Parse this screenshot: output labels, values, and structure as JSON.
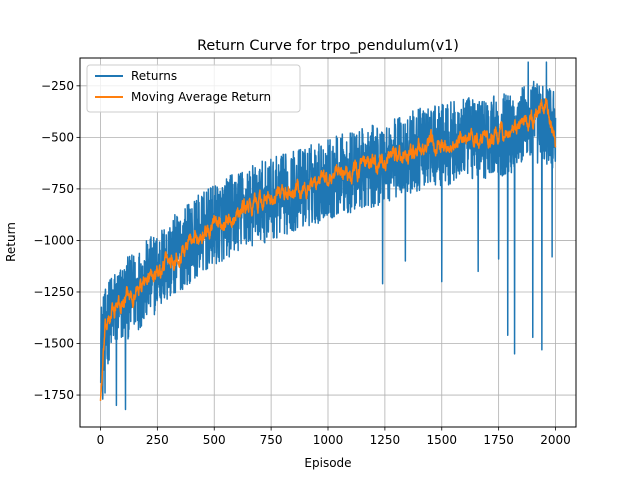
{
  "chart_data": {
    "type": "line",
    "title": "Return Curve for trpo_pendulum(v1)",
    "xlabel": "Episode",
    "ylabel": "Return",
    "xlim": [
      -90,
      2090
    ],
    "ylim": [
      -1905,
      -115
    ],
    "xticks": [
      0,
      250,
      500,
      750,
      1000,
      1250,
      1500,
      1750,
      2000
    ],
    "yticks": [
      -1750,
      -1500,
      -1250,
      -1000,
      -750,
      -500,
      -250
    ],
    "xtick_labels": [
      "0",
      "250",
      "500",
      "750",
      "1000",
      "1250",
      "1500",
      "1750",
      "2000"
    ],
    "ytick_labels": [
      "−1750",
      "−1500",
      "−1250",
      "−1000",
      "−750",
      "−500",
      "−250"
    ],
    "grid": true,
    "legend_position": "top-left",
    "episodes": 2000,
    "series": [
      {
        "name": "Returns",
        "color": "#1f77b4",
        "style": "noisy",
        "trend_x": [
          0,
          50,
          100,
          150,
          200,
          300,
          400,
          500,
          600,
          700,
          800,
          900,
          1000,
          1100,
          1200,
          1300,
          1400,
          1500,
          1600,
          1700,
          1800,
          1900,
          2000
        ],
        "trend_y": [
          -1500,
          -1350,
          -1300,
          -1250,
          -1200,
          -1100,
          -1000,
          -930,
          -860,
          -820,
          -780,
          -740,
          -700,
          -670,
          -640,
          -600,
          -560,
          -540,
          -510,
          -500,
          -480,
          -420,
          -460
        ],
        "noise_amplitude": 200,
        "spikes": [
          {
            "x": 10,
            "y": -1770
          },
          {
            "x": 20,
            "y": -1740
          },
          {
            "x": 70,
            "y": -1800
          },
          {
            "x": 110,
            "y": -1820
          },
          {
            "x": 1240,
            "y": -1210
          },
          {
            "x": 1340,
            "y": -1100
          },
          {
            "x": 1500,
            "y": -1200
          },
          {
            "x": 1660,
            "y": -1150
          },
          {
            "x": 1750,
            "y": -1090
          },
          {
            "x": 1790,
            "y": -1460
          },
          {
            "x": 1820,
            "y": -1550
          },
          {
            "x": 1900,
            "y": -1470
          },
          {
            "x": 1940,
            "y": -1530
          },
          {
            "x": 1985,
            "y": -1080
          },
          {
            "x": 1880,
            "y": -135
          },
          {
            "x": 1960,
            "y": -135
          }
        ]
      },
      {
        "name": "Moving Average Return",
        "color": "#ff7f0e",
        "style": "smooth",
        "trend_x": [
          0,
          20,
          50,
          100,
          150,
          200,
          300,
          400,
          500,
          600,
          700,
          800,
          900,
          1000,
          1100,
          1200,
          1300,
          1400,
          1500,
          1600,
          1700,
          1800,
          1900,
          1960,
          2000
        ],
        "trend_y": [
          -1770,
          -1450,
          -1350,
          -1300,
          -1250,
          -1200,
          -1100,
          -1000,
          -930,
          -860,
          -820,
          -780,
          -740,
          -700,
          -670,
          -640,
          -600,
          -560,
          -540,
          -510,
          -500,
          -480,
          -420,
          -330,
          -540
        ],
        "noise_amplitude": 70
      }
    ]
  }
}
